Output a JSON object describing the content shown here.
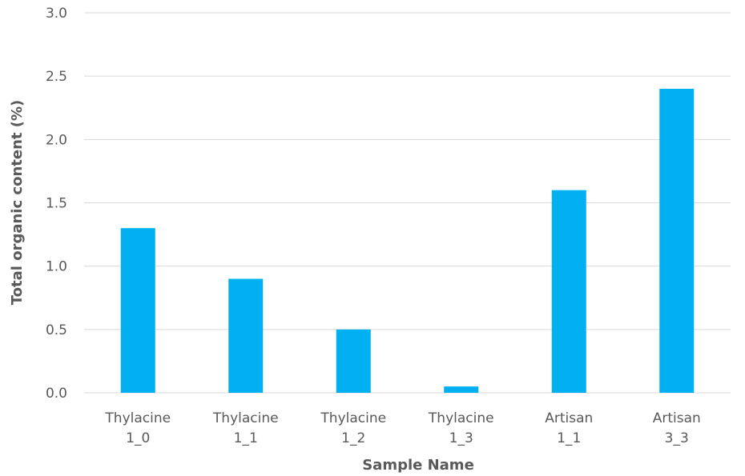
{
  "chart_data": {
    "type": "bar",
    "categories": [
      [
        "Thylacine",
        "1_0"
      ],
      [
        "Thylacine",
        "1_1"
      ],
      [
        "Thylacine",
        "1_2"
      ],
      [
        "Thylacine",
        "1_3"
      ],
      [
        "Artisan",
        "1_1"
      ],
      [
        "Artisan",
        "3_3"
      ]
    ],
    "values": [
      1.3,
      0.9,
      0.5,
      0.05,
      1.6,
      2.4
    ],
    "xlabel": "Sample Name",
    "ylabel": "Total organic content (%)",
    "ylim": [
      0,
      3.0
    ],
    "yticks": [
      "0.0",
      "0.5",
      "1.0",
      "1.5",
      "2.0",
      "2.5",
      "3.0"
    ],
    "grid": true,
    "bar_color": "#00b0f0"
  }
}
